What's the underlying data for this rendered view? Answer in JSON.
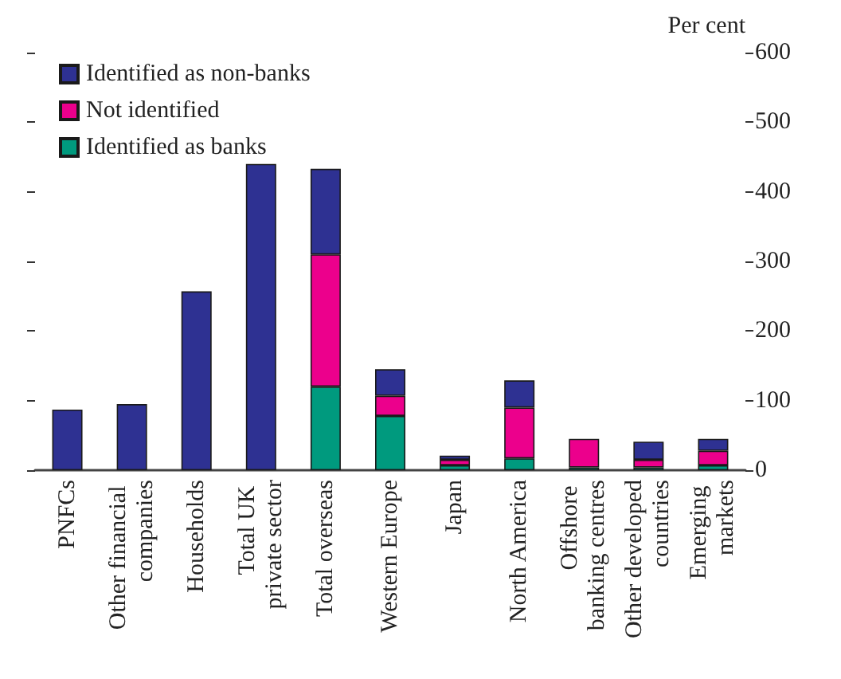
{
  "chart_data": {
    "type": "bar",
    "stacked": true,
    "ylabel": "Per cent",
    "categories": [
      "PNFCs",
      "Other financial companies",
      "Households",
      "Total UK private sector",
      "Total overseas",
      "Western Europe",
      "Japan",
      "North America",
      "Offshore banking centres",
      "Other developed countries",
      "Emerging markets"
    ],
    "series": [
      {
        "name": "Identified as banks",
        "color": "#009a7e",
        "values": [
          null,
          null,
          null,
          null,
          120,
          78,
          7,
          17,
          4,
          4,
          7
        ]
      },
      {
        "name": "Not identified",
        "color": "#ec008c",
        "values": [
          null,
          null,
          null,
          null,
          190,
          29,
          8,
          73,
          41,
          11,
          21
        ]
      },
      {
        "name": "Identified as non-banks",
        "color": "#2e3192",
        "values": [
          87,
          95,
          257,
          440,
          123,
          38,
          6,
          39,
          null,
          26,
          17
        ]
      }
    ],
    "ylim": [
      0,
      600
    ],
    "yticks": [
      0,
      100,
      200,
      300,
      400,
      500,
      600
    ],
    "legend": "top left",
    "grid": false
  }
}
